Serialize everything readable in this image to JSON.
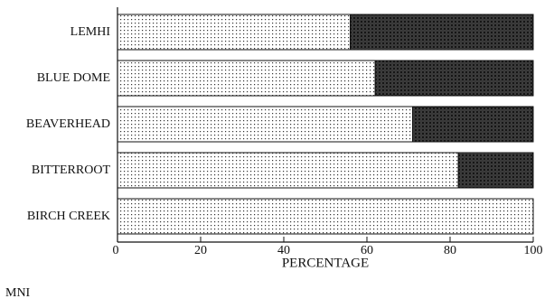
{
  "chart_data": {
    "type": "bar",
    "orientation": "horizontal",
    "stacked": true,
    "categories": [
      "LEMHI",
      "BLUE DOME",
      "BEAVERHEAD",
      "BITTERROOT",
      "BIRCH CREEK"
    ],
    "series": [
      {
        "values": [
          56,
          62,
          71,
          82,
          100
        ],
        "fill": "light-dotted"
      },
      {
        "values": [
          44,
          38,
          29,
          18,
          0
        ],
        "fill": "dark-crosshatch"
      }
    ],
    "xticks": [
      0,
      20,
      40,
      60,
      80,
      100
    ],
    "xlim": [
      0,
      100
    ],
    "xlabel": "PERCENTAGE",
    "grid": false
  },
  "footnote": "MNI"
}
